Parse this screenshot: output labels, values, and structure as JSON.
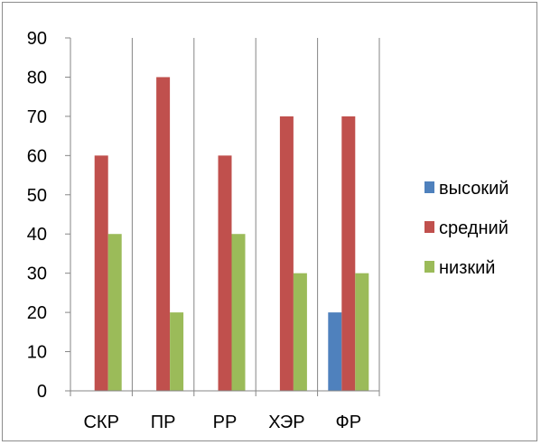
{
  "chart_data": {
    "type": "bar",
    "categories": [
      "СКР",
      "ПР",
      "РР",
      "ХЭР",
      "ФР"
    ],
    "series": [
      {
        "name": "высокий",
        "color": "#4F81BD",
        "values": [
          0,
          0,
          0,
          0,
          20
        ]
      },
      {
        "name": "средний",
        "color": "#C0504D",
        "values": [
          60,
          80,
          60,
          70,
          70
        ]
      },
      {
        "name": "низкий",
        "color": "#9BBB59",
        "values": [
          40,
          20,
          40,
          30,
          30
        ]
      }
    ],
    "ylim": [
      0,
      90
    ],
    "yticks": [
      0,
      10,
      20,
      30,
      40,
      50,
      60,
      70,
      80,
      90
    ],
    "grid": {
      "vertical": true,
      "horizontal": false
    },
    "legend_position": "right"
  }
}
